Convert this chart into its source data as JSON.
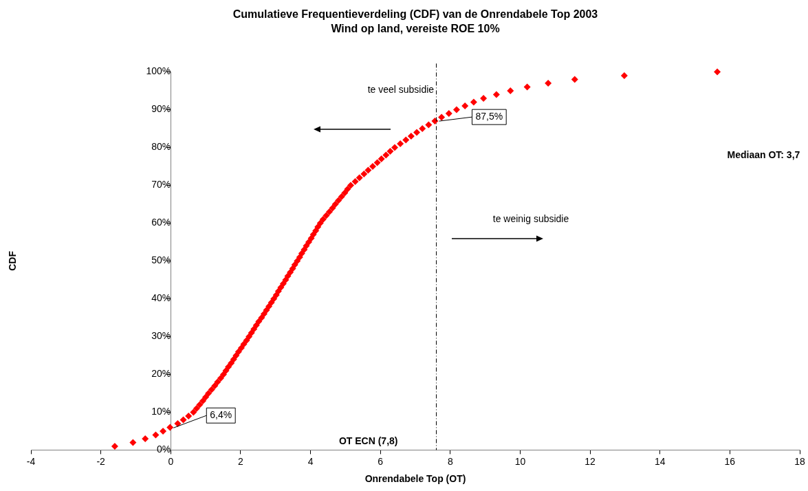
{
  "chart_data": {
    "type": "scatter",
    "title": "Cumulatieve Frequentieverdeling (CDF) van de Onrendabele Top 2003",
    "subtitle": "Wind op land, vereiste ROE 10%",
    "xlabel": "Onrendabele Top (OT)",
    "ylabel": "CDF",
    "marker": "diamond",
    "color": "#ff0000",
    "x": [
      -1.6,
      -1.08,
      -0.73,
      -0.43,
      -0.22,
      -0.02,
      0.2,
      0.36,
      0.51,
      0.65,
      0.74,
      0.83,
      0.92,
      1.0,
      1.08,
      1.17,
      1.26,
      1.34,
      1.43,
      1.51,
      1.58,
      1.65,
      1.73,
      1.8,
      1.87,
      1.94,
      2.02,
      2.09,
      2.17,
      2.24,
      2.31,
      2.38,
      2.45,
      2.52,
      2.6,
      2.67,
      2.74,
      2.81,
      2.88,
      2.95,
      3.02,
      3.08,
      3.15,
      3.22,
      3.29,
      3.35,
      3.42,
      3.49,
      3.55,
      3.62,
      3.69,
      3.75,
      3.82,
      3.88,
      3.95,
      4.02,
      4.08,
      4.15,
      4.21,
      4.28,
      4.36,
      4.45,
      4.54,
      4.63,
      4.71,
      4.8,
      4.89,
      4.98,
      5.06,
      5.15,
      5.28,
      5.4,
      5.53,
      5.65,
      5.78,
      5.91,
      6.03,
      6.16,
      6.28,
      6.41,
      6.57,
      6.73,
      6.88,
      7.04,
      7.2,
      7.38,
      7.56,
      7.75,
      7.96,
      8.18,
      8.42,
      8.67,
      8.95,
      9.32,
      9.72,
      10.2,
      10.8,
      11.56,
      12.98,
      15.64
    ],
    "values": [
      1,
      2,
      3,
      4,
      5,
      6,
      7,
      8,
      9,
      10,
      11,
      12,
      13,
      14,
      15,
      16,
      17,
      18,
      19,
      20,
      21,
      22,
      23,
      24,
      25,
      26,
      27,
      28,
      29,
      30,
      31,
      32,
      33,
      34,
      35,
      36,
      37,
      38,
      39,
      40,
      41,
      42,
      43,
      44,
      45,
      46,
      47,
      48,
      49,
      50,
      51,
      52,
      53,
      54,
      55,
      56,
      57,
      58,
      59,
      60,
      61,
      62,
      63,
      64,
      65,
      66,
      67,
      68,
      69,
      70,
      71,
      72,
      73,
      74,
      75,
      76,
      77,
      78,
      79,
      80,
      81,
      82,
      83,
      84,
      85,
      86,
      87,
      88,
      89,
      90,
      91,
      92,
      93,
      94,
      95,
      96,
      97,
      98,
      99,
      100
    ],
    "xlim": [
      -4,
      18
    ],
    "xticks": [
      -4,
      -2,
      0,
      2,
      4,
      6,
      8,
      10,
      12,
      14,
      16,
      18
    ],
    "ylim": [
      0,
      100
    ],
    "yticks": [
      {
        "value": 0,
        "label": "0%"
      },
      {
        "value": 10,
        "label": "10%"
      },
      {
        "value": 20,
        "label": "20%"
      },
      {
        "value": 30,
        "label": "30%"
      },
      {
        "value": 40,
        "label": "40%"
      },
      {
        "value": 50,
        "label": "50%"
      },
      {
        "value": 60,
        "label": "60%"
      },
      {
        "value": 70,
        "label": "70%"
      },
      {
        "value": 80,
        "label": "80%"
      },
      {
        "value": 90,
        "label": "90%"
      },
      {
        "value": 100,
        "label": "100%"
      }
    ],
    "ref_lines": [
      {
        "axis": "x",
        "value": 7.6,
        "label": "OT ECN (7,8)",
        "line_style": "dashed",
        "color": "#000000"
      }
    ],
    "annotations": [
      "te veel subsidie",
      "te weinig subsidie",
      "Mediaan OT: 3,7",
      {
        "text": "6,4%",
        "x": 0,
        "y": 6.4
      },
      {
        "text": "87,5%",
        "x": 7.6,
        "y": 87.5
      }
    ]
  }
}
